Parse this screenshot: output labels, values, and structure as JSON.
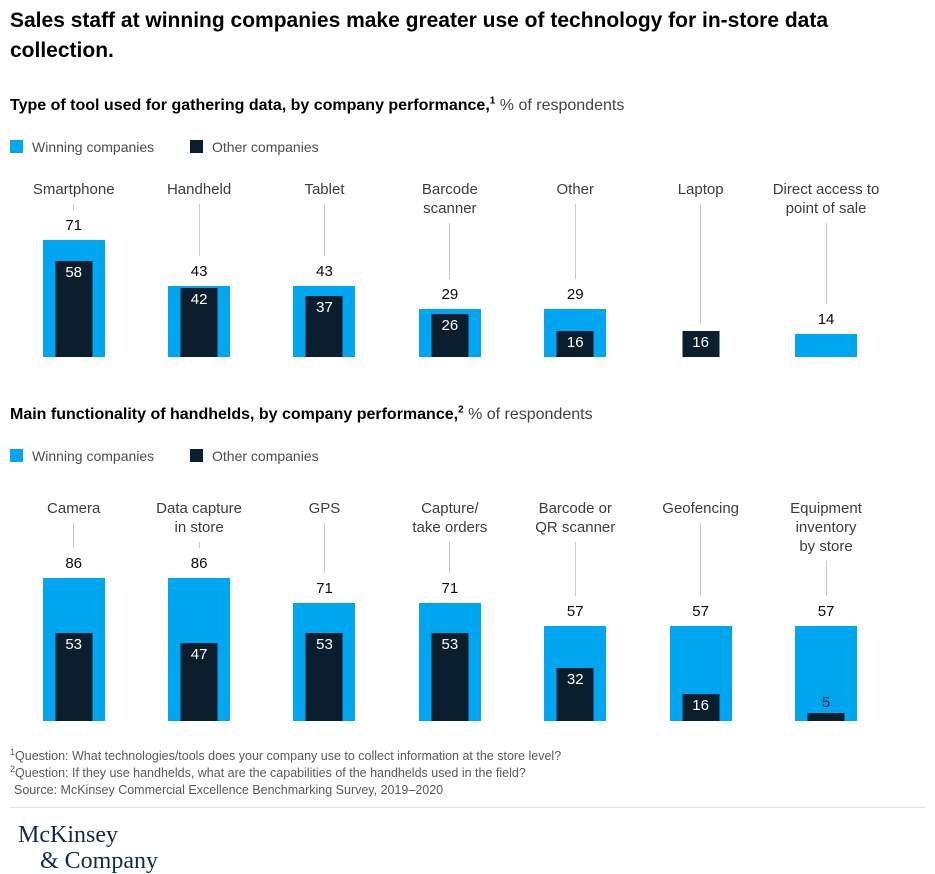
{
  "title": "Sales staff at winning companies make greater use of technology for in-store data collection.",
  "colors": {
    "winning": "#00a6ef",
    "other": "#0a1e2e",
    "connector": "#c9c9c9"
  },
  "legend": {
    "winning": "Winning companies",
    "other": "Other companies"
  },
  "sections": [
    {
      "heading_bold": "Type of tool used for gathering data, by company performance,",
      "heading_sup": "1",
      "heading_rest": " % of respondents"
    },
    {
      "heading_bold": "Main functionality of handhelds, by company performance,",
      "heading_sup": "2",
      "heading_rest": " % of respondents"
    }
  ],
  "chart_data": [
    {
      "type": "bar",
      "title": "Type of tool used for gathering data, by company performance",
      "ylabel": "% of respondents",
      "categories": [
        "Smartphone",
        "Handheld",
        "Tablet",
        "Barcode scanner",
        "Other",
        "Laptop",
        "Direct access to point of sale"
      ],
      "label_lines": [
        [
          "Smartphone"
        ],
        [
          "Handheld"
        ],
        [
          "Tablet"
        ],
        [
          "Barcode",
          "scanner"
        ],
        [
          "Other"
        ],
        [
          "Laptop"
        ],
        [
          "Direct access to",
          "point of sale"
        ]
      ],
      "series": [
        {
          "name": "Winning companies",
          "values": [
            71,
            43,
            43,
            29,
            29,
            null,
            14
          ]
        },
        {
          "name": "Other companies",
          "values": [
            58,
            42,
            37,
            26,
            16,
            16,
            null
          ]
        }
      ],
      "ylim": [
        0,
        100
      ],
      "grid": false,
      "legend_position": "top-left"
    },
    {
      "type": "bar",
      "title": "Main functionality of handhelds, by company performance",
      "ylabel": "% of respondents",
      "categories": [
        "Camera",
        "Data capture in store",
        "GPS",
        "Capture/take orders",
        "Barcode or QR scanner",
        "Geofencing",
        "Equipment inventory by store"
      ],
      "label_lines": [
        [
          "Camera"
        ],
        [
          "Data capture",
          "in store"
        ],
        [
          "GPS"
        ],
        [
          "Capture/",
          "take orders"
        ],
        [
          "Barcode or",
          "QR scanner"
        ],
        [
          "Geofencing"
        ],
        [
          "Equipment",
          "inventory",
          "by store"
        ]
      ],
      "series": [
        {
          "name": "Winning companies",
          "values": [
            86,
            86,
            71,
            71,
            57,
            57,
            57
          ]
        },
        {
          "name": "Other companies",
          "values": [
            53,
            47,
            53,
            53,
            32,
            16,
            5
          ]
        }
      ],
      "ylim": [
        0,
        100
      ],
      "grid": false,
      "legend_position": "top-left"
    }
  ],
  "footnotes": [
    {
      "sup": "1",
      "text": "Question: What technologies/tools does your company use to collect information at the store level?"
    },
    {
      "sup": "2",
      "text": "Question: If they use handhelds, what are the capabilities of the handhelds used in the field?"
    }
  ],
  "source": "Source: McKinsey Commercial Excellence Benchmarking Survey, 2019–2020",
  "logo": {
    "line1": "McKinsey",
    "line2": "& Company"
  }
}
